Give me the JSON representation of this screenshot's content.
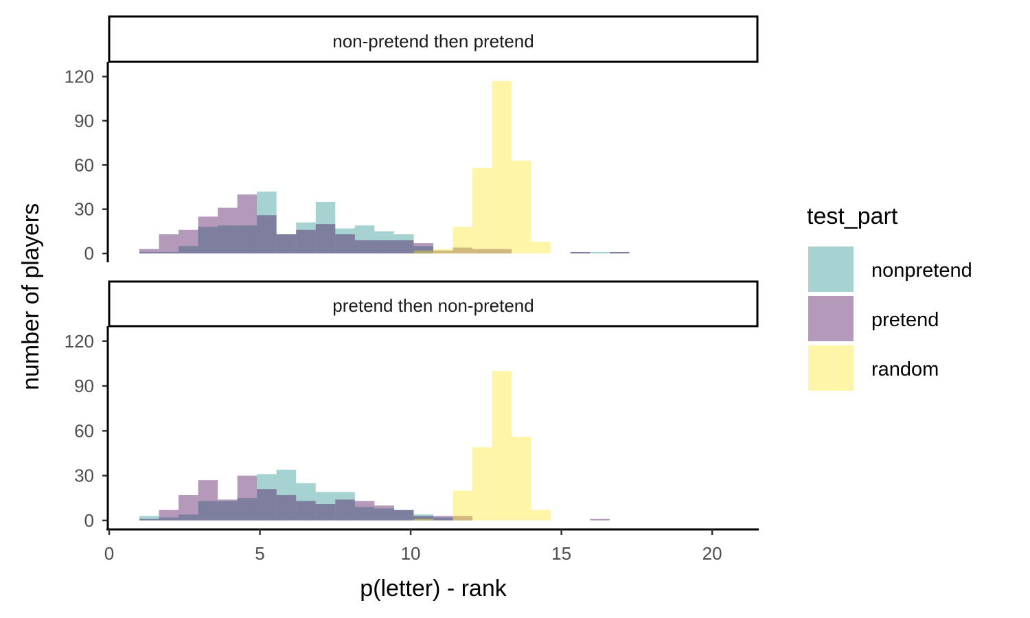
{
  "chart_data": {
    "type": "bar",
    "subtype": "histogram",
    "xlabel": "p(letter) - rank",
    "ylabel": "number of players",
    "xlim": [
      0,
      21.5
    ],
    "ylim": [
      -6,
      130
    ],
    "xticks": [
      0,
      5,
      10,
      15,
      20
    ],
    "yticks": [
      0,
      30,
      60,
      90,
      120
    ],
    "legend": {
      "title": "test_part",
      "position": "right",
      "entries": [
        {
          "name": "nonpretend",
          "color": "#21908C"
        },
        {
          "name": "pretend",
          "color": "#440154"
        },
        {
          "name": "random",
          "color": "#FDE725"
        }
      ]
    },
    "bar_opacity": 0.4,
    "bin_start": 1,
    "bin_width": 0.65,
    "panels": [
      {
        "strip": "non-pretend then pretend",
        "series": [
          {
            "name": "nonpretend",
            "values": [
              1,
              1,
              5,
              18,
              19,
              19,
              42,
              13,
              21,
              35,
              17,
              19,
              15,
              13,
              5,
              0,
              0,
              0,
              0,
              0,
              0,
              0,
              1,
              1,
              1
            ]
          },
          {
            "name": "pretend",
            "values": [
              3,
              13,
              16,
              25,
              31,
              40,
              26,
              13,
              16,
              20,
              13,
              9,
              9,
              9,
              7,
              2,
              4,
              3,
              3,
              0,
              0,
              0,
              1,
              0,
              1,
              0,
              0,
              0,
              0,
              0,
              0,
              0,
              0,
              0,
              0,
              0,
              0,
              0,
              0,
              0,
              0,
              0,
              0,
              0,
              0,
              0,
              0,
              0,
              0,
              0,
              1
            ]
          },
          {
            "name": "random",
            "values": [
              0,
              0,
              0,
              0,
              0,
              0,
              0,
              0,
              0,
              0,
              0,
              0,
              0,
              0,
              2,
              3,
              18,
              58,
              117,
              63,
              8
            ]
          }
        ]
      },
      {
        "strip": "pretend then non-pretend",
        "series": [
          {
            "name": "nonpretend",
            "values": [
              3,
              2,
              4,
              13,
              13,
              15,
              31,
              34,
              25,
              19,
              19,
              9,
              8,
              7,
              4,
              2,
              0,
              0,
              0,
              0,
              0,
              0,
              0,
              0,
              0
            ]
          },
          {
            "name": "pretend",
            "values": [
              1,
              7,
              17,
              27,
              14,
              30,
              21,
              17,
              13,
              11,
              14,
              13,
              10,
              7,
              3,
              3,
              3,
              0,
              0,
              0,
              0,
              0,
              0,
              1
            ]
          },
          {
            "name": "random",
            "values": [
              0,
              0,
              0,
              0,
              0,
              0,
              0,
              0,
              0,
              0,
              0,
              0,
              0,
              0,
              1,
              0,
              20,
              49,
              100,
              56,
              7
            ]
          }
        ]
      }
    ]
  }
}
